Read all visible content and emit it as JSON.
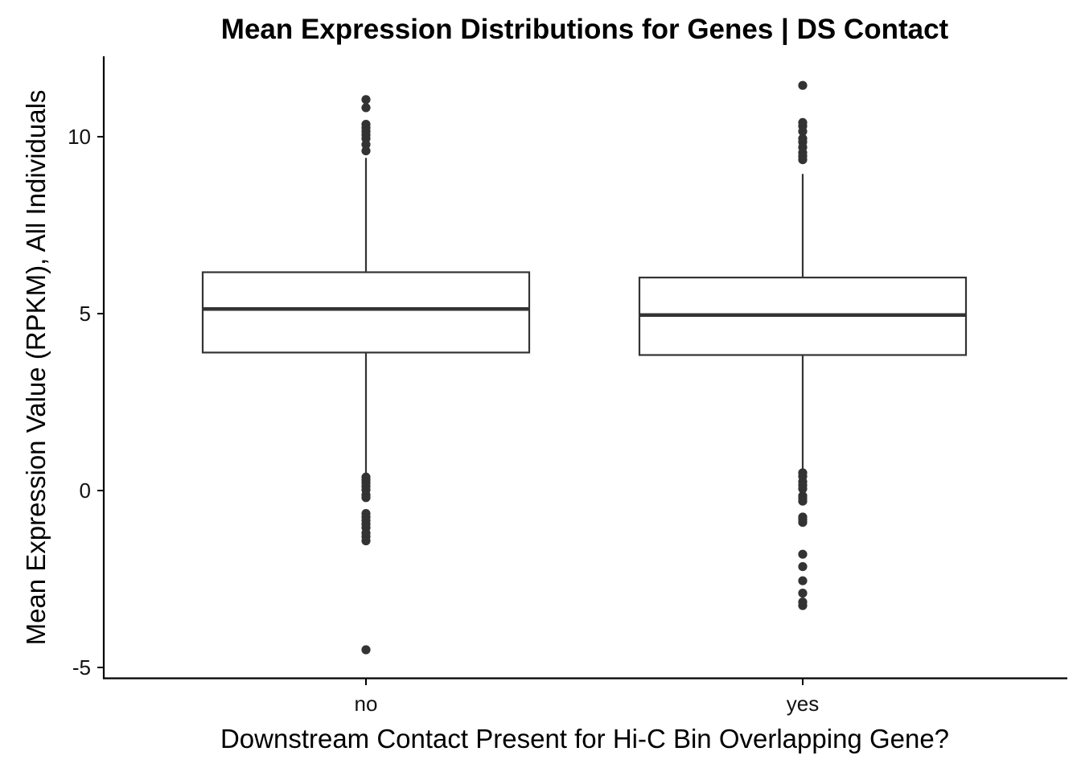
{
  "chart_data": {
    "type": "boxplot",
    "title": "Mean Expression Distributions for Genes | DS Contact",
    "xlabel": "Downstream Contact Present for Hi-C Bin Overlapping Gene?",
    "ylabel": "Mean Expression Value (RPKM), All Individuals",
    "categories": [
      "no",
      "yes"
    ],
    "ylim": [
      -5.3,
      12.2
    ],
    "yticks": [
      -5,
      0,
      5,
      10
    ],
    "ytick_labels": [
      "-5",
      "0",
      "5",
      "10"
    ],
    "grid": false,
    "series": [
      {
        "category": "no",
        "whisker_low": 0.5,
        "q1": 3.9,
        "median": 5.13,
        "q3": 6.17,
        "whisker_high": 9.4,
        "outliers_high": [
          11.05,
          10.82,
          10.35,
          10.25,
          10.15,
          10.05,
          9.95,
          9.78,
          9.6
        ],
        "outliers_low": [
          0.38,
          0.3,
          0.22,
          0.12,
          0.02,
          -0.12,
          -0.2,
          -0.65,
          -0.75,
          -0.85,
          -0.95,
          -1.05,
          -1.2,
          -1.3,
          -1.42,
          -4.5
        ]
      },
      {
        "category": "yes",
        "whisker_low": 0.6,
        "q1": 3.83,
        "median": 4.96,
        "q3": 6.02,
        "whisker_high": 8.95,
        "outliers_high": [
          11.45,
          10.4,
          10.3,
          10.15,
          9.95,
          9.85,
          9.7,
          9.55,
          9.45,
          9.35
        ],
        "outliers_low": [
          0.5,
          0.4,
          0.25,
          0.15,
          0.05,
          -0.15,
          -0.22,
          -0.3,
          -0.75,
          -0.82,
          -0.9,
          -1.8,
          -2.15,
          -2.55,
          -2.9,
          -3.15,
          -3.25
        ]
      }
    ]
  }
}
